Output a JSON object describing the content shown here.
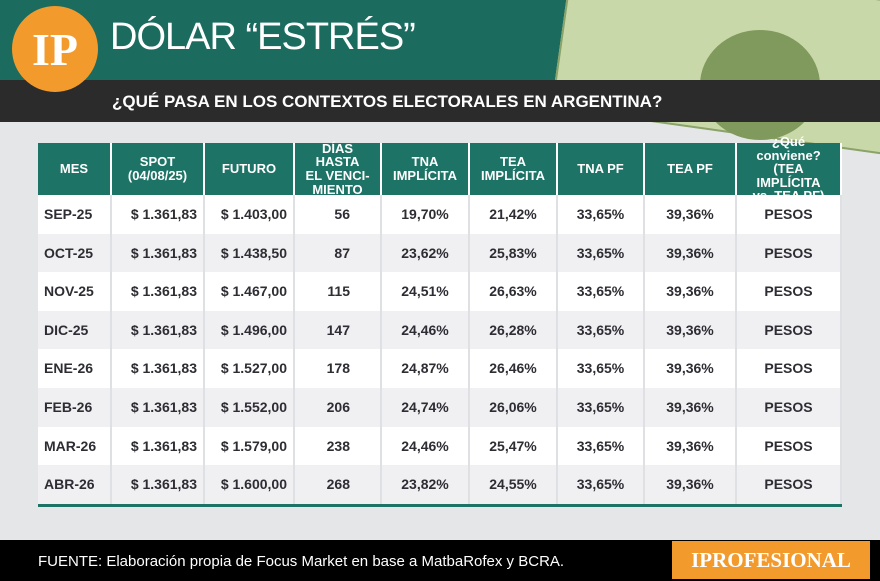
{
  "header": {
    "logo": "IP",
    "title": "DÓLAR “ESTRÉS”",
    "subtitle": "¿QUÉ PASA EN LOS CONTEXTOS ELECTORALES EN ARGENTINA?"
  },
  "table": {
    "columns": [
      "MES",
      "SPOT\n(04/08/25)",
      "FUTURO",
      "DÍAS HASTA\nEL VENCI-\nMIENTO",
      "TNA\nIMPLÍCITA",
      "TEA\nIMPLÍCITA",
      "TNA PF",
      "TEA PF",
      "¿Qué conviene?\n(TEA IMPLÍCITA\nvs. TEA PF)"
    ],
    "rows": [
      [
        "SEP-25",
        "$ 1.361,83",
        "$ 1.403,00",
        "56",
        "19,70%",
        "21,42%",
        "33,65%",
        "39,36%",
        "PESOS"
      ],
      [
        "OCT-25",
        "$ 1.361,83",
        "$ 1.438,50",
        "87",
        "23,62%",
        "25,83%",
        "33,65%",
        "39,36%",
        "PESOS"
      ],
      [
        "NOV-25",
        "$ 1.361,83",
        "$ 1.467,00",
        "115",
        "24,51%",
        "26,63%",
        "33,65%",
        "39,36%",
        "PESOS"
      ],
      [
        "DIC-25",
        "$ 1.361,83",
        "$ 1.496,00",
        "147",
        "24,46%",
        "26,28%",
        "33,65%",
        "39,36%",
        "PESOS"
      ],
      [
        "ENE-26",
        "$ 1.361,83",
        "$ 1.527,00",
        "178",
        "24,87%",
        "26,46%",
        "33,65%",
        "39,36%",
        "PESOS"
      ],
      [
        "FEB-26",
        "$ 1.361,83",
        "$ 1.552,00",
        "206",
        "24,74%",
        "26,06%",
        "33,65%",
        "39,36%",
        "PESOS"
      ],
      [
        "MAR-26",
        "$ 1.361,83",
        "$ 1.579,00",
        "238",
        "24,46%",
        "25,47%",
        "33,65%",
        "39,36%",
        "PESOS"
      ],
      [
        "ABR-26",
        "$ 1.361,83",
        "$ 1.600,00",
        "268",
        "23,82%",
        "24,55%",
        "33,65%",
        "39,36%",
        "PESOS"
      ]
    ]
  },
  "footer": {
    "source": "FUENTE: Elaboración propia de Focus Market en base a MatbaRofex y BCRA.",
    "brand": "IPROFESIONAL"
  }
}
